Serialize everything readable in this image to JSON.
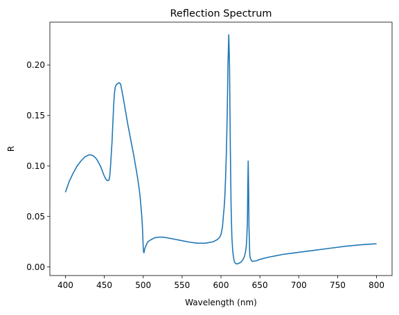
{
  "chart_data": {
    "type": "line",
    "title": "Reflection Spectrum",
    "xlabel": "Wavelength (nm)",
    "ylabel": "R",
    "xlim": [
      380,
      820
    ],
    "ylim": [
      -0.0085,
      0.2425
    ],
    "grid": false,
    "legend": "none",
    "x_ticks": [
      400,
      450,
      500,
      550,
      600,
      650,
      700,
      750,
      800
    ],
    "x_tick_labels": [
      "400",
      "450",
      "500",
      "550",
      "600",
      "650",
      "700",
      "750",
      "800"
    ],
    "y_ticks": [
      0.0,
      0.05,
      0.1,
      0.15,
      0.2
    ],
    "y_tick_labels": [
      "0.00",
      "0.05",
      "0.10",
      "0.15",
      "0.20"
    ],
    "series": [
      {
        "color": "#1f77b4",
        "x": [
          400,
          405,
          410,
          415,
          420,
          425,
          430,
          433,
          436,
          440,
          445,
          450,
          452,
          454,
          456,
          457,
          458,
          460,
          462,
          463,
          464,
          465,
          466,
          467,
          468,
          469,
          470,
          471,
          472,
          474,
          476,
          478,
          480,
          482,
          484,
          486,
          488,
          490,
          492,
          494,
          496,
          498,
          499,
          500,
          500.5,
          501,
          501.5,
          502,
          504,
          506,
          510,
          515,
          520,
          525,
          530,
          540,
          550,
          560,
          570,
          580,
          590,
          595,
          598,
          600,
          602,
          603,
          604,
          605,
          606,
          607,
          608,
          609,
          610,
          611,
          612,
          613,
          614,
          615,
          616,
          617,
          618,
          620,
          622,
          624,
          626,
          628,
          630,
          631,
          632,
          633,
          634,
          634.5,
          635,
          635.5,
          636,
          637,
          638,
          640,
          645,
          650,
          660,
          670,
          680,
          690,
          700,
          720,
          740,
          760,
          780,
          800
        ],
        "y": [
          0.074,
          0.085,
          0.093,
          0.1,
          0.105,
          0.109,
          0.111,
          0.111,
          0.11,
          0.107,
          0.1,
          0.09,
          0.087,
          0.0855,
          0.086,
          0.09,
          0.1,
          0.125,
          0.16,
          0.172,
          0.178,
          0.18,
          0.181,
          0.1815,
          0.182,
          0.1825,
          0.182,
          0.181,
          0.177,
          0.169,
          0.16,
          0.151,
          0.142,
          0.134,
          0.126,
          0.118,
          0.11,
          0.101,
          0.092,
          0.082,
          0.07,
          0.052,
          0.04,
          0.02,
          0.015,
          0.014,
          0.016,
          0.018,
          0.022,
          0.025,
          0.027,
          0.029,
          0.0295,
          0.0295,
          0.029,
          0.0275,
          0.026,
          0.0245,
          0.0235,
          0.0235,
          0.025,
          0.027,
          0.029,
          0.032,
          0.04,
          0.05,
          0.058,
          0.07,
          0.09,
          0.115,
          0.15,
          0.2,
          0.23,
          0.2,
          0.12,
          0.06,
          0.03,
          0.017,
          0.01,
          0.006,
          0.004,
          0.003,
          0.0033,
          0.004,
          0.005,
          0.007,
          0.01,
          0.013,
          0.017,
          0.025,
          0.045,
          0.08,
          0.105,
          0.08,
          0.04,
          0.012,
          0.008,
          0.0055,
          0.006,
          0.0075,
          0.0095,
          0.011,
          0.0125,
          0.0135,
          0.0145,
          0.0165,
          0.0185,
          0.0205,
          0.022,
          0.023
        ]
      }
    ]
  }
}
